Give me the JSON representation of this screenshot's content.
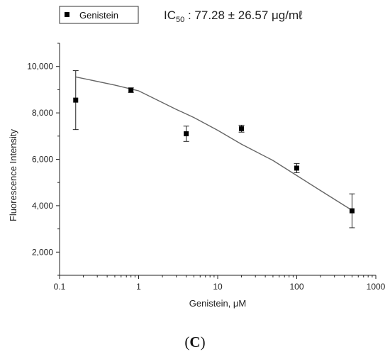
{
  "panel_label": {
    "open": "(",
    "letter": "C",
    "close": ")"
  },
  "chart_data": {
    "type": "scatter",
    "title": "",
    "xlabel": "Genistein, μM",
    "ylabel": "Fluorescence Intensity",
    "xscale": "log",
    "xlim": [
      0.1,
      1000
    ],
    "ylim": [
      1000,
      11000
    ],
    "x_ticks": [
      0.1,
      1,
      10,
      100,
      1000
    ],
    "x_tick_labels": [
      "0.1",
      "1",
      "10",
      "100",
      "1000"
    ],
    "y_ticks": [
      2000,
      4000,
      6000,
      8000,
      10000
    ],
    "y_tick_labels": [
      "2,000",
      "4,000",
      "6,000",
      "8,000",
      "10,000"
    ],
    "grid": false,
    "legend": {
      "position": "top-left",
      "entries": [
        "Genistein"
      ]
    },
    "annotation": {
      "prefix": "IC",
      "subscript": "50",
      "text": " : 77.28 ± 26.57 μg/mℓ"
    },
    "series": [
      {
        "name": "Genistein",
        "marker": "square",
        "color": "#000000",
        "x": [
          0.16,
          0.8,
          4,
          20,
          100,
          500
        ],
        "y": [
          8550,
          8980,
          7100,
          7320,
          5620,
          3780
        ],
        "error": [
          1270,
          100,
          330,
          150,
          200,
          730
        ]
      }
    ],
    "fit_curve": {
      "type": "sigmoidal",
      "x": [
        0.16,
        0.5,
        1,
        3,
        5,
        10,
        20,
        50,
        100,
        200,
        500
      ],
      "y": [
        9550,
        9200,
        8950,
        8150,
        7800,
        7250,
        6650,
        5950,
        5300,
        4650,
        3800
      ],
      "color": "#666666"
    }
  }
}
